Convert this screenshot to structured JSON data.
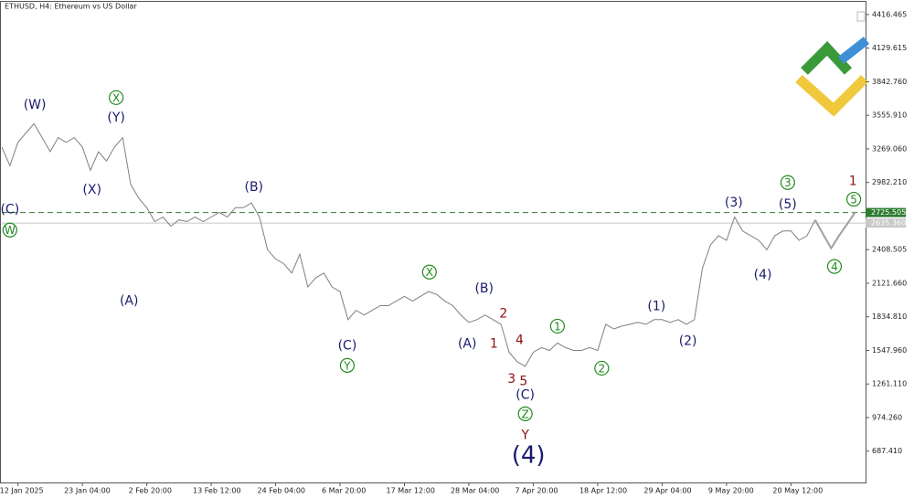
{
  "chart_data": {
    "type": "line",
    "title": "ETHUSD, H4:  Ethereum vs US Dollar",
    "categories": [
      null,
      null,
      "12 Jan 2025",
      null,
      null,
      null,
      null,
      null,
      null,
      null,
      "23 Jan 04:00",
      null,
      null,
      null,
      null,
      null,
      null,
      null,
      "2 Feb 20:00",
      null,
      null,
      null,
      null,
      null,
      null,
      null,
      "13 Feb 12:00",
      null,
      null,
      null,
      null,
      null,
      null,
      null,
      "24 Feb 04:00",
      null,
      null,
      null,
      null,
      null,
      null,
      null,
      "6 Mar 20:00",
      null,
      null,
      null,
      null,
      null,
      null,
      null,
      "17 Mar 12:00",
      null,
      null,
      null,
      null,
      null,
      null,
      null,
      "28 Mar 04:00",
      null,
      null,
      null,
      null,
      null,
      null,
      null,
      "7 Apr 20:00",
      null,
      null,
      null,
      null,
      null,
      null,
      null,
      "18 Apr 12:00",
      null,
      null,
      null,
      null,
      null,
      null,
      null,
      "29 Apr 04:00",
      null,
      null,
      null,
      null,
      null,
      null,
      null,
      "9 May 20:00",
      null,
      null,
      null,
      null,
      null,
      null,
      null,
      "20 May 12:00",
      null,
      null,
      null,
      null,
      null,
      null,
      null,
      null
    ],
    "series": [
      {
        "name": "ETHUSD",
        "color": "#7f7f7f",
        "values": [
          3285,
          3126,
          3325,
          3405,
          3484,
          3365,
          3245,
          3365,
          3325,
          3365,
          3285,
          3086,
          3245,
          3166,
          3285,
          3365,
          2966,
          2847,
          2767,
          2648,
          2687,
          2608,
          2663,
          2648,
          2687,
          2648,
          2687,
          2727,
          2687,
          2767,
          2767,
          2807,
          2687,
          2408,
          2329,
          2289,
          2209,
          2369,
          2090,
          2169,
          2209,
          2090,
          2050,
          1811,
          1890,
          1850,
          1890,
          1930,
          1930,
          1970,
          2010,
          1970,
          2010,
          2050,
          2026,
          1970,
          1930,
          1850,
          1787,
          1811,
          1850,
          1811,
          1771,
          1532,
          1452,
          1412,
          1532,
          1572,
          1548,
          1611,
          1572,
          1548,
          1548,
          1572,
          1548,
          1771,
          1731,
          1755,
          1771,
          1787,
          1771,
          1811,
          1811,
          1787,
          1811,
          1771,
          1811,
          2249,
          2448,
          2528,
          2488,
          2687,
          2568,
          2528,
          2488,
          2408,
          2528,
          2568,
          2568,
          2488,
          2528,
          2663,
          null,
          null,
          null,
          null,
          null
        ]
      },
      {
        "name": "Forecast",
        "color": "#a0a0a0",
        "values": [
          null,
          null,
          null,
          null,
          null,
          null,
          null,
          null,
          null,
          null,
          null,
          null,
          null,
          null,
          null,
          null,
          null,
          null,
          null,
          null,
          null,
          null,
          null,
          null,
          null,
          null,
          null,
          null,
          null,
          null,
          null,
          null,
          null,
          null,
          null,
          null,
          null,
          null,
          null,
          null,
          null,
          null,
          null,
          null,
          null,
          null,
          null,
          null,
          null,
          null,
          null,
          null,
          null,
          null,
          null,
          null,
          null,
          null,
          null,
          null,
          null,
          null,
          null,
          null,
          null,
          null,
          null,
          null,
          null,
          null,
          null,
          null,
          null,
          null,
          null,
          null,
          null,
          null,
          null,
          null,
          null,
          null,
          null,
          null,
          null,
          null,
          null,
          null,
          null,
          null,
          null,
          null,
          null,
          null,
          null,
          null,
          null,
          null,
          null,
          null,
          null,
          2663,
          2540,
          2420,
          2530,
          2630,
          2730
        ]
      }
    ],
    "ylim": [
      420,
      4525
    ],
    "yticks": [
      {
        "value": 4416.465,
        "label": "4416.465"
      },
      {
        "value": 4129.615,
        "label": "4129.615"
      },
      {
        "value": 3842.76,
        "label": "3842.760"
      },
      {
        "value": 3555.91,
        "label": "3555.910"
      },
      {
        "value": 3269.06,
        "label": "3269.060"
      },
      {
        "value": 2982.21,
        "label": "2982.210"
      },
      {
        "value": 2408.505,
        "label": "2408.505"
      },
      {
        "value": 2121.66,
        "label": "2121.660"
      },
      {
        "value": 1834.81,
        "label": "1834.810"
      },
      {
        "value": 1547.96,
        "label": "1547.960"
      },
      {
        "value": 1261.11,
        "label": "1261.110"
      },
      {
        "value": 974.26,
        "label": "974.260"
      },
      {
        "value": 687.41,
        "label": "687.410"
      }
    ],
    "price_lines": [
      {
        "value": 2725.505,
        "label": "2725.505",
        "color": "#2e7d32",
        "dashed": true
      },
      {
        "value": 2635.36,
        "label": "2635.360",
        "color": "#c8c8c8",
        "dashed": false
      }
    ],
    "annotations": [
      {
        "text": "(C)",
        "x": 1,
        "y": 2759,
        "color": "#1a1a6e"
      },
      {
        "text": "W",
        "x": 1,
        "y": 2576,
        "color": "#1f8a1f",
        "circled": true
      },
      {
        "text": "(W)",
        "x": 4.1,
        "y": 3652,
        "color": "#1a1a6e"
      },
      {
        "text": "X",
        "x": 14.2,
        "y": 3707,
        "color": "#1f8a1f",
        "circled": true
      },
      {
        "text": "(Y)",
        "x": 14.2,
        "y": 3540,
        "color": "#1a1a6e"
      },
      {
        "text": "(X)",
        "x": 11.2,
        "y": 2926,
        "color": "#1a1a6e"
      },
      {
        "text": "(A)",
        "x": 15.8,
        "y": 1978,
        "color": "#1a1a6e"
      },
      {
        "text": "(B)",
        "x": 31.3,
        "y": 2950,
        "color": "#1a1a6e"
      },
      {
        "text": "(C)",
        "x": 42.9,
        "y": 1595,
        "color": "#1a1a6e"
      },
      {
        "text": "Y",
        "x": 42.9,
        "y": 1420,
        "color": "#1f8a1f",
        "circled": true
      },
      {
        "text": "X",
        "x": 53.1,
        "y": 2217,
        "color": "#1f8a1f",
        "circled": true
      },
      {
        "text": "(B)",
        "x": 59.9,
        "y": 2082,
        "color": "#1a1a6e"
      },
      {
        "text": "(A)",
        "x": 57.8,
        "y": 1611,
        "color": "#1a1a6e"
      },
      {
        "text": "2",
        "x": 62.3,
        "y": 1866,
        "color": "#8b1010"
      },
      {
        "text": "1",
        "x": 61.1,
        "y": 1611,
        "color": "#8b1010"
      },
      {
        "text": "4",
        "x": 64.3,
        "y": 1643,
        "color": "#8b1010"
      },
      {
        "text": "3",
        "x": 63.3,
        "y": 1308,
        "color": "#8b1010"
      },
      {
        "text": "5",
        "x": 64.8,
        "y": 1292,
        "color": "#8b1010"
      },
      {
        "text": "(C)",
        "x": 65,
        "y": 1173,
        "color": "#1a1a6e"
      },
      {
        "text": "Z",
        "x": 65,
        "y": 1006,
        "color": "#1f8a1f",
        "circled": true
      },
      {
        "text": "Y",
        "x": 65,
        "y": 830,
        "color": "#8b1010"
      },
      {
        "text": "(4)",
        "x": 65.4,
        "y": 655,
        "color": "#1a1a6e",
        "big": true
      },
      {
        "text": "1",
        "x": 69,
        "y": 1755,
        "color": "#1f8a1f",
        "circled": true
      },
      {
        "text": "2",
        "x": 74.5,
        "y": 1396,
        "color": "#1f8a1f",
        "circled": true
      },
      {
        "text": "(1)",
        "x": 81.3,
        "y": 1930,
        "color": "#1a1a6e"
      },
      {
        "text": "(2)",
        "x": 85.2,
        "y": 1635,
        "color": "#1a1a6e"
      },
      {
        "text": "(3)",
        "x": 90.9,
        "y": 2815,
        "color": "#1a1a6e"
      },
      {
        "text": "(5)",
        "x": 97.6,
        "y": 2799,
        "color": "#1a1a6e"
      },
      {
        "text": "3",
        "x": 97.6,
        "y": 2982,
        "color": "#1f8a1f",
        "circled": true
      },
      {
        "text": "(4)",
        "x": 94.5,
        "y": 2201,
        "color": "#1a1a6e"
      },
      {
        "text": "4",
        "x": 103.4,
        "y": 2265,
        "color": "#1f8a1f",
        "circled": true
      },
      {
        "text": "1",
        "x": 105.7,
        "y": 2998,
        "color": "#8b1010"
      },
      {
        "text": "5",
        "x": 105.8,
        "y": 2839,
        "color": "#1f8a1f",
        "circled": true
      }
    ]
  }
}
